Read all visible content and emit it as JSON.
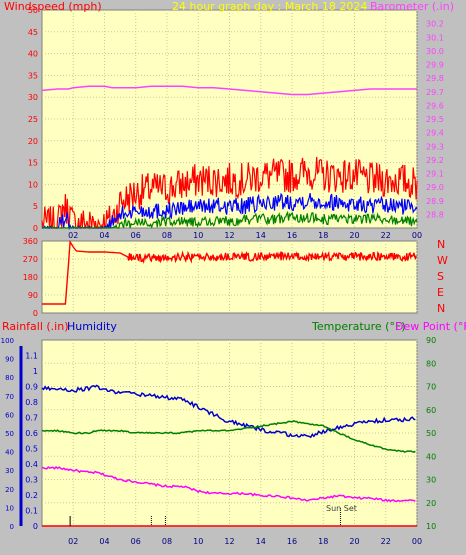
{
  "header": {
    "wind_label": "Windspeed (mph)",
    "title": "24 hour graph day : March 18 2024",
    "baro_label": "Barometer (.in)"
  },
  "bottom_labels": {
    "rain": "Rainfall (.in)",
    "humidity": "Humidity",
    "temperature": "Temperature (°F)",
    "dewpoint": "Dew Point (°F)",
    "sunset": "Sun Set"
  },
  "colors": {
    "plot_bg": "#ffffc0",
    "page_bg": "#c0c0c0",
    "wind_max": "#ff0000",
    "wind_avg": "#0000ff",
    "wind_min": "#008000",
    "barometer": "#ff40ff",
    "direction": "#ff0000",
    "humidity": "#0000cc",
    "temperature": "#008000",
    "dewpoint": "#ff00ff",
    "rain": "#ff0000"
  },
  "chart_data": [
    {
      "type": "line",
      "id": "wind_baro",
      "title": "24 hour graph day : March 18 2024",
      "xlabel": "",
      "x_ticks": [
        "02",
        "04",
        "06",
        "08",
        "10",
        "12",
        "14",
        "16",
        "18",
        "20",
        "22",
        "00"
      ],
      "ylabel_left": "Windspeed (mph)",
      "ylim_left": [
        0,
        50
      ],
      "y_ticks_left": [
        0,
        5,
        10,
        15,
        20,
        25,
        30,
        35,
        40,
        45,
        50
      ],
      "ylabel_right": "Barometer (.in)",
      "ylim_right": [
        28.7,
        30.3
      ],
      "y_ticks_right": [
        28.8,
        28.9,
        29.0,
        29.1,
        29.2,
        29.3,
        29.4,
        29.5,
        29.6,
        29.7,
        29.8,
        29.9,
        30.0,
        30.1,
        30.2
      ],
      "grid": true,
      "hours": [
        0,
        1,
        1.4,
        1.7,
        2,
        3,
        4,
        4.5,
        5,
        6,
        7,
        8,
        9,
        10,
        11,
        12,
        13,
        14,
        15,
        16,
        17,
        18,
        19,
        20,
        21,
        22,
        23,
        24
      ],
      "series": [
        {
          "key": "max",
          "values": [
            1,
            1,
            5,
            4,
            1,
            1,
            1,
            2,
            6,
            8,
            9,
            9,
            10,
            11,
            11,
            11,
            11,
            12,
            12,
            12,
            13,
            12,
            12,
            12,
            11,
            11,
            11,
            10
          ]
        },
        {
          "key": "avg",
          "values": [
            0,
            0,
            2,
            2,
            0,
            0,
            0,
            1,
            3,
            4,
            4,
            4,
            4.5,
            5,
            5,
            5,
            5,
            5.5,
            6,
            6,
            6.5,
            6,
            6,
            5.5,
            5,
            5,
            5,
            5
          ]
        },
        {
          "key": "min",
          "values": [
            0,
            0,
            0,
            0,
            0,
            0,
            0,
            0,
            1,
            1,
            1,
            1.5,
            1.5,
            1.5,
            1.5,
            1.5,
            2,
            2,
            2,
            2.5,
            2.5,
            2,
            2,
            2,
            2,
            2,
            1.5,
            1.5
          ]
        },
        {
          "key": "barometer",
          "values": [
            29.71,
            29.72,
            29.72,
            29.72,
            29.73,
            29.74,
            29.74,
            29.73,
            29.73,
            29.73,
            29.74,
            29.74,
            29.74,
            29.73,
            29.73,
            29.72,
            29.71,
            29.7,
            29.69,
            29.68,
            29.68,
            29.69,
            29.7,
            29.71,
            29.72,
            29.72,
            29.72,
            29.72
          ]
        }
      ]
    },
    {
      "type": "line",
      "id": "direction",
      "x_ticks": [
        "02",
        "04",
        "06",
        "08",
        "10",
        "12",
        "14",
        "16",
        "18",
        "20",
        "22",
        "00"
      ],
      "ylim": [
        0,
        360
      ],
      "y_ticks": [
        0,
        90,
        180,
        270,
        360
      ],
      "compass_labels": [
        "N",
        "W",
        "S",
        "E",
        "N"
      ],
      "grid": true,
      "hours": [
        0,
        1.5,
        1.8,
        2.0,
        2.2,
        3,
        4,
        5,
        5.5,
        6,
        7,
        8,
        9,
        10,
        11,
        12,
        13,
        14,
        15,
        16,
        17,
        18,
        19,
        20,
        21,
        22,
        23,
        24
      ],
      "series": [
        {
          "key": "direction",
          "values": [
            45,
            45,
            355,
            330,
            310,
            305,
            305,
            300,
            280,
            275,
            278,
            275,
            280,
            280,
            278,
            282,
            280,
            280,
            282,
            285,
            280,
            282,
            280,
            282,
            283,
            285,
            280,
            282
          ]
        }
      ]
    },
    {
      "type": "line",
      "id": "hum_temp",
      "x_ticks": [
        "02",
        "04",
        "06",
        "08",
        "10",
        "12",
        "14",
        "16",
        "18",
        "20",
        "22",
        "00"
      ],
      "ylabel_left": "Rainfall (.in)",
      "ylim_rain": [
        0,
        1.2
      ],
      "y_ticks_rain": [
        0,
        0.1,
        0.2,
        0.3,
        0.4,
        0.5,
        0.6,
        0.7,
        0.8,
        0.9,
        1,
        1.1
      ],
      "ylim_humidity": [
        0,
        100
      ],
      "y_ticks_humidity": [
        0,
        10,
        20,
        30,
        40,
        50,
        60,
        70,
        80,
        90,
        100
      ],
      "ylabel_right": "Temperature (°F)",
      "ylim_right": [
        10,
        90
      ],
      "y_ticks_right": [
        10,
        20,
        30,
        40,
        50,
        60,
        70,
        80,
        90
      ],
      "grid": true,
      "hours": [
        0,
        1,
        2,
        3,
        3.5,
        4,
        5,
        6,
        7,
        8,
        9,
        10,
        11,
        12,
        13,
        14,
        15,
        16,
        17,
        18,
        19,
        20,
        21,
        22,
        23,
        24
      ],
      "series": [
        {
          "key": "humidity",
          "values": [
            74,
            74,
            73,
            74,
            75,
            73,
            72,
            71,
            70,
            69,
            68,
            64,
            60,
            56,
            54,
            52,
            50,
            49,
            48,
            51,
            53,
            55,
            56,
            57,
            57,
            58
          ]
        },
        {
          "key": "temperature",
          "values": [
            51,
            51,
            50,
            50,
            51,
            51,
            51,
            50,
            50,
            50,
            50,
            51,
            51,
            51,
            52,
            53,
            54,
            55,
            54,
            53,
            50,
            47,
            45,
            43,
            42,
            42
          ]
        },
        {
          "key": "dewpoint",
          "values": [
            35,
            35,
            34,
            33,
            33,
            32,
            30,
            29,
            28,
            27,
            27,
            25,
            24,
            24,
            24,
            23,
            23,
            22,
            21,
            22,
            23,
            22,
            22,
            21,
            21,
            21
          ]
        },
        {
          "key": "rain",
          "values": [
            0,
            0,
            0,
            0,
            0,
            0,
            0,
            0,
            0,
            0,
            0,
            0,
            0,
            0,
            0,
            0,
            0,
            0,
            0,
            0,
            0,
            0,
            0,
            0,
            0,
            0
          ]
        }
      ],
      "markers_hours": [
        1.8,
        7.0,
        7.9
      ],
      "sunset_hour": 19.1
    }
  ]
}
